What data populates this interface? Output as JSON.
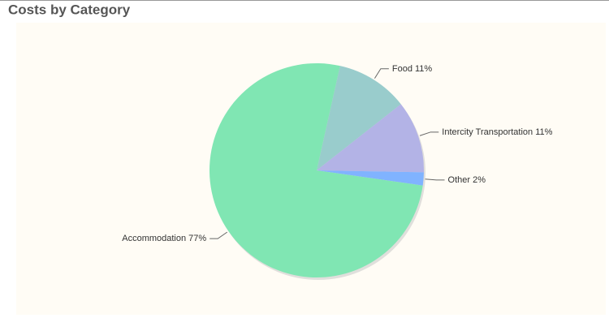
{
  "chart_data": {
    "type": "pie",
    "title": "Costs by Category",
    "categories": [
      "Food",
      "Intercity Transportation",
      "Other",
      "Accommodation"
    ],
    "values": [
      11,
      11,
      2,
      77
    ],
    "value_labels": [
      "11%",
      "11%",
      "2%",
      "77%"
    ],
    "colors": [
      "#99cccc",
      "#b3b3e6",
      "#80b3ff",
      "#80e6b3"
    ]
  }
}
